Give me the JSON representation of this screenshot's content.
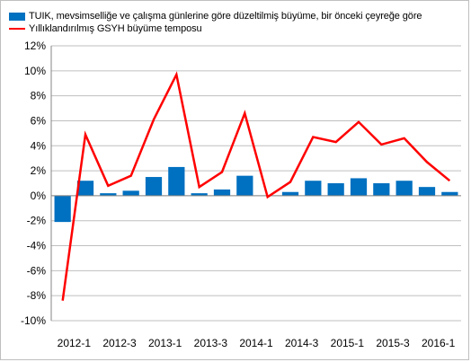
{
  "chart_data": {
    "type": "bar",
    "categories": [
      "2012-1",
      "2012-2",
      "2012-3",
      "2012-4",
      "2013-1",
      "2013-2",
      "2013-3",
      "2013-4",
      "2014-1",
      "2014-2",
      "2014-3",
      "2014-4",
      "2015-1",
      "2015-2",
      "2015-3",
      "2015-4",
      "2016-1",
      "2016-2"
    ],
    "x_tick_labels": [
      "2012-1",
      "2012-3",
      "2013-1",
      "2013-3",
      "2014-1",
      "2014-3",
      "2015-1",
      "2015-3",
      "2016-1"
    ],
    "series": [
      {
        "name": "TUIK, mevsimselliğe ve çalışma günlerine göre düzeltilmiş büyüme, bir önceki çeyreğe göre",
        "kind": "bar",
        "color": "#0070c0",
        "values": [
          -2.1,
          1.2,
          0.2,
          0.4,
          1.5,
          2.3,
          0.2,
          0.5,
          1.6,
          0.0,
          0.3,
          1.2,
          1.0,
          1.4,
          1.0,
          1.2,
          0.7,
          0.3
        ]
      },
      {
        "name": "Yıllıklandırılmış GSYH büyüme temposu",
        "kind": "line",
        "color": "#ff0000",
        "values": [
          -8.4,
          4.9,
          0.8,
          1.6,
          6.1,
          9.7,
          0.7,
          1.9,
          6.6,
          -0.1,
          1.1,
          4.7,
          4.3,
          5.9,
          4.1,
          4.6,
          2.7,
          1.2
        ]
      }
    ],
    "y_ticks": [
      -10,
      -8,
      -6,
      -4,
      -2,
      0,
      2,
      4,
      6,
      8,
      10,
      12
    ],
    "y_tick_suffix": "%",
    "ylim": [
      -10,
      12
    ],
    "grid": true,
    "legend_position": "top-left",
    "title": "",
    "xlabel": "",
    "ylabel": ""
  }
}
